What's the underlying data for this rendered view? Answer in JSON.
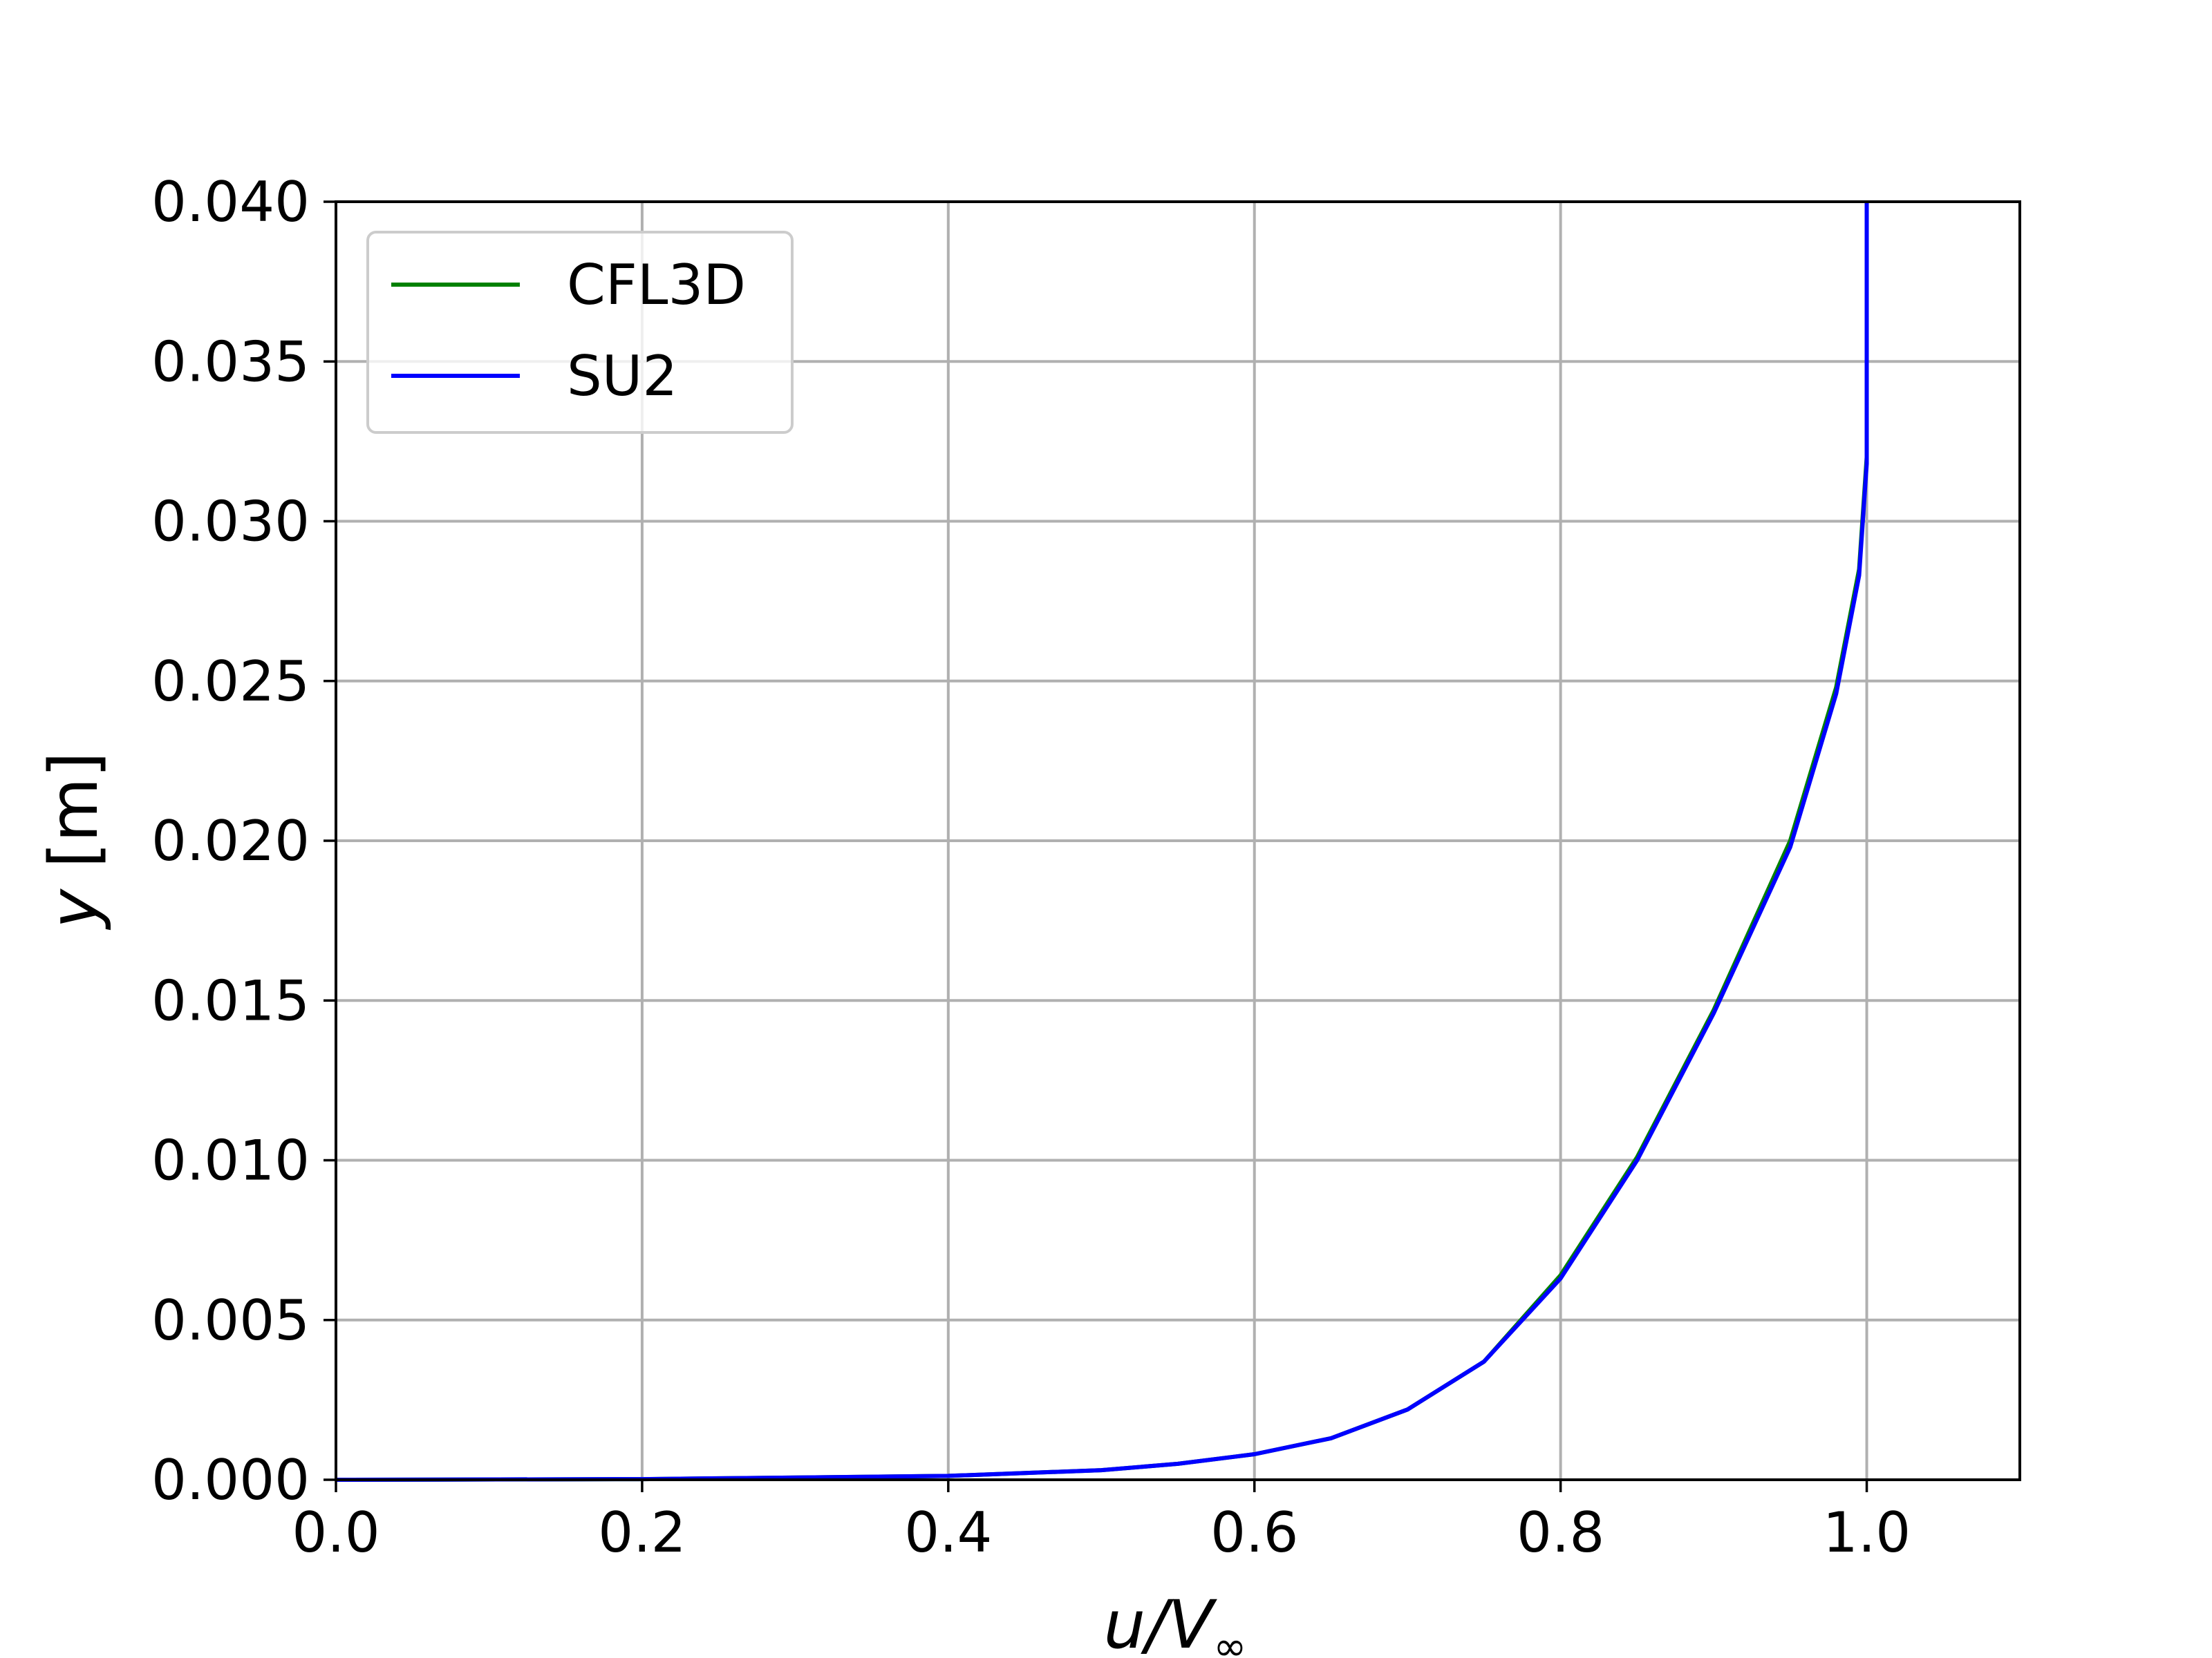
{
  "chart_data": {
    "type": "line",
    "title": "",
    "xlabel": "u/V",
    "xlabel_sub": "∞",
    "ylabel_var": "y",
    "ylabel_unit": " [m]",
    "xlim": [
      0.0,
      1.1
    ],
    "ylim": [
      0.0,
      0.04
    ],
    "x_ticks": [
      "0.0",
      "0.2",
      "0.4",
      "0.6",
      "0.8",
      "1.0"
    ],
    "x_tick_values": [
      0.0,
      0.2,
      0.4,
      0.6,
      0.8,
      1.0
    ],
    "y_ticks": [
      "0.000",
      "0.005",
      "0.010",
      "0.015",
      "0.020",
      "0.025",
      "0.030",
      "0.035",
      "0.040"
    ],
    "y_tick_values": [
      0.0,
      0.005,
      0.01,
      0.015,
      0.02,
      0.025,
      0.03,
      0.035,
      0.04
    ],
    "grid": true,
    "legend_position": "top-left",
    "series": [
      {
        "name": "CFL3D",
        "color": "#008000",
        "x": [
          0.0,
          0.2,
          0.4,
          0.5,
          0.55,
          0.6,
          0.65,
          0.7,
          0.75,
          0.8,
          0.85,
          0.9,
          0.95,
          0.98,
          0.995,
          1.0,
          1.0
        ],
        "y": [
          0.0,
          2e-05,
          0.00012,
          0.0003,
          0.0005,
          0.0008,
          0.0013,
          0.0022,
          0.0037,
          0.0064,
          0.0101,
          0.0147,
          0.02,
          0.0248,
          0.0285,
          0.032,
          0.04
        ]
      },
      {
        "name": "SU2",
        "color": "#0000ff",
        "x": [
          0.0,
          0.2,
          0.4,
          0.5,
          0.55,
          0.6,
          0.65,
          0.7,
          0.75,
          0.8,
          0.85,
          0.9,
          0.95,
          0.98,
          0.995,
          1.0,
          1.0
        ],
        "y": [
          0.0,
          2e-05,
          0.00012,
          0.0003,
          0.0005,
          0.0008,
          0.0013,
          0.0022,
          0.0037,
          0.0063,
          0.01,
          0.0146,
          0.0198,
          0.0246,
          0.0283,
          0.0318,
          0.04
        ]
      }
    ]
  }
}
